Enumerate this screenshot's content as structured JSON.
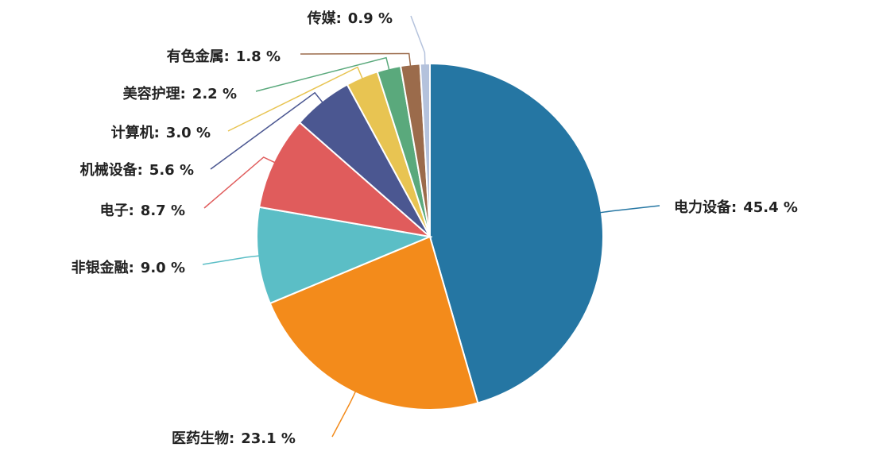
{
  "chart_data": {
    "type": "pie",
    "categories": [
      "电力设备:",
      "医药生物:",
      "非银金融:",
      "电子:",
      "机械设备:",
      "计算机:",
      "美容护理:",
      "有色金属:",
      "传媒:"
    ],
    "values": [
      45.4,
      23.1,
      9.0,
      8.7,
      5.6,
      3.0,
      2.2,
      1.8,
      0.9
    ],
    "value_labels": [
      "45.4 %",
      "23.1 %",
      "9.0 %",
      "8.7 %",
      "5.6 %",
      "3.0 %",
      "2.2 %",
      "1.8 %",
      "0.9 %"
    ],
    "colors": [
      "#2576a3",
      "#f38b1b",
      "#5bbec6",
      "#e05c5c",
      "#4b5791",
      "#e8c452",
      "#5aa97c",
      "#9b6b4b",
      "#b4c2dc"
    ]
  }
}
